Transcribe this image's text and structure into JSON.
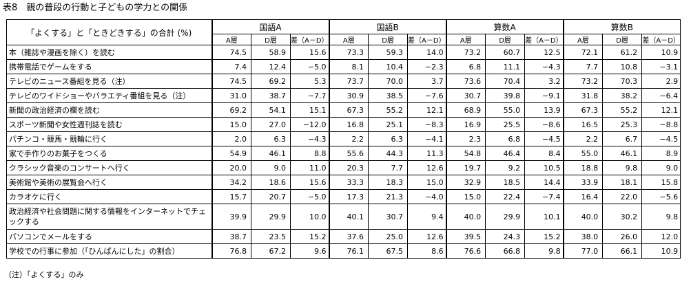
{
  "title": "表8　親の普段の行動と子どもの学力との関係",
  "header": {
    "row_label": "「よくする」と「ときどきする」の合計 (%)",
    "groups": [
      "国語A",
      "国語B",
      "算数A",
      "算数B"
    ],
    "subcols": [
      "A層",
      "D層",
      "差（A－D）"
    ]
  },
  "rows": [
    {
      "label": "本（雑誌や漫画を除く）を読む",
      "values": [
        "74.5",
        "58.9",
        "15.6",
        "73.3",
        "59.3",
        "14.0",
        "73.2",
        "60.7",
        "12.5",
        "72.1",
        "61.2",
        "10.9"
      ]
    },
    {
      "label": "携帯電話でゲームをする",
      "values": [
        "7.4",
        "12.4",
        "−5.0",
        "8.1",
        "10.4",
        "−2.3",
        "6.8",
        "11.1",
        "−4.3",
        "7.7",
        "10.8",
        "−3.1"
      ]
    },
    {
      "label": "テレビのニュース番組を見る（注）",
      "values": [
        "74.5",
        "69.2",
        "5.3",
        "73.7",
        "70.0",
        "3.7",
        "73.6",
        "70.4",
        "3.2",
        "73.2",
        "70.3",
        "2.9"
      ]
    },
    {
      "label": "テレビのワイドショーやバラエティ番組を見る（注）",
      "values": [
        "31.0",
        "38.7",
        "−7.7",
        "30.9",
        "38.5",
        "−7.6",
        "30.7",
        "39.8",
        "−9.1",
        "31.8",
        "38.2",
        "−6.4"
      ]
    },
    {
      "label": "新聞の政治経済の欄を読む",
      "values": [
        "69.2",
        "54.1",
        "15.1",
        "67.3",
        "55.2",
        "12.1",
        "68.9",
        "55.0",
        "13.9",
        "67.3",
        "55.2",
        "12.1"
      ]
    },
    {
      "label": "スポーツ新聞や女性週刊誌を読む",
      "values": [
        "15.0",
        "27.0",
        "−12.0",
        "16.8",
        "25.1",
        "−8.3",
        "16.9",
        "25.5",
        "−8.6",
        "16.5",
        "25.3",
        "−8.8"
      ]
    },
    {
      "label": "パチンコ・競馬・競輪に行く",
      "values": [
        "2.0",
        "6.3",
        "−4.3",
        "2.2",
        "6.3",
        "−4.1",
        "2.3",
        "6.8",
        "−4.5",
        "2.2",
        "6.7",
        "−4.5"
      ]
    },
    {
      "label": "家で手作りのお菓子をつくる",
      "values": [
        "54.9",
        "46.1",
        "8.8",
        "55.6",
        "44.3",
        "11.3",
        "54.8",
        "46.4",
        "8.4",
        "55.0",
        "46.1",
        "8.9"
      ]
    },
    {
      "label": "クラシック音楽のコンサートへ行く",
      "values": [
        "20.0",
        "9.0",
        "11.0",
        "20.3",
        "7.7",
        "12.6",
        "19.7",
        "9.2",
        "10.5",
        "18.8",
        "9.8",
        "9.0"
      ]
    },
    {
      "label": "美術館や美術の展覧会へ行く",
      "values": [
        "34.2",
        "18.6",
        "15.6",
        "33.3",
        "18.3",
        "15.0",
        "32.9",
        "18.5",
        "14.4",
        "33.9",
        "18.1",
        "15.8"
      ]
    },
    {
      "label": "カラオケに行く",
      "values": [
        "15.7",
        "20.7",
        "−5.0",
        "17.3",
        "21.3",
        "−4.0",
        "15.0",
        "22.4",
        "−7.4",
        "16.4",
        "22.0",
        "−5.6"
      ]
    },
    {
      "label": "政治経済や社会問題に関する情報をインターネットでチェックする",
      "values": [
        "39.9",
        "29.9",
        "10.0",
        "40.1",
        "30.7",
        "9.4",
        "40.0",
        "29.9",
        "10.1",
        "40.0",
        "30.2",
        "9.8"
      ]
    },
    {
      "label": "パソコンでメールをする",
      "values": [
        "38.7",
        "23.5",
        "15.2",
        "37.6",
        "25.0",
        "12.6",
        "39.5",
        "24.3",
        "15.2",
        "38.0",
        "26.0",
        "12.0"
      ]
    },
    {
      "label": "学校での行事に参加（「ひんぱんにした」の割合）",
      "values": [
        "76.8",
        "67.2",
        "9.6",
        "76.1",
        "67.5",
        "8.6",
        "76.6",
        "66.8",
        "9.8",
        "77.0",
        "66.1",
        "10.9"
      ]
    }
  ],
  "note": "（注）「よくする」のみ"
}
